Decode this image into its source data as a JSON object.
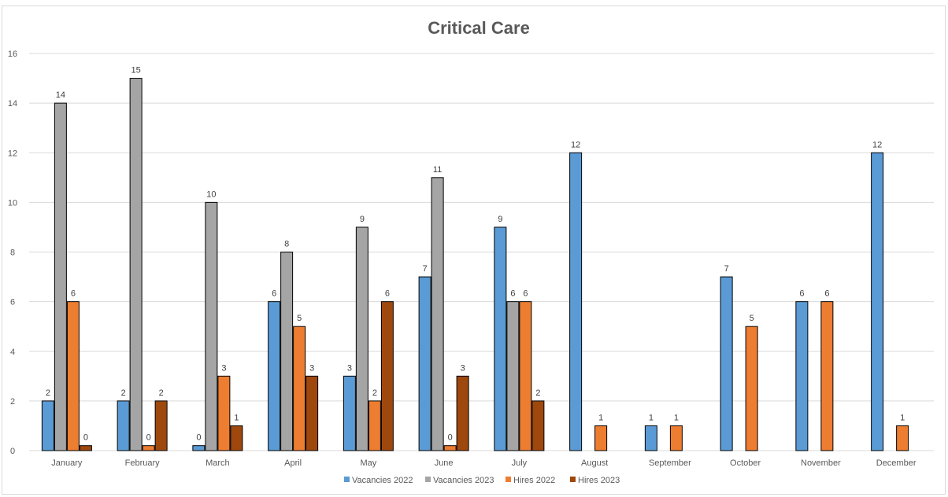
{
  "chart_data": {
    "type": "bar",
    "title": "Critical Care",
    "xlabel": "",
    "ylabel": "",
    "ylim": [
      0,
      16
    ],
    "yticks": [
      0,
      2,
      4,
      6,
      8,
      10,
      12,
      14,
      16
    ],
    "grid": true,
    "legend_position": "bottom",
    "categories": [
      "January",
      "February",
      "March",
      "April",
      "May",
      "June",
      "July",
      "August",
      "September",
      "October",
      "November",
      "December"
    ],
    "series": [
      {
        "name": "Vacancies 2022",
        "color": "#5b9bd5",
        "values": [
          2,
          2,
          0,
          6,
          3,
          7,
          9,
          12,
          1,
          7,
          6,
          12
        ]
      },
      {
        "name": "Vacancies 2023",
        "color": "#a5a5a5",
        "values": [
          14,
          15,
          10,
          8,
          9,
          11,
          6,
          null,
          null,
          null,
          null,
          null
        ]
      },
      {
        "name": "Hires 2022",
        "color": "#ed7d31",
        "values": [
          6,
          0,
          3,
          5,
          2,
          0,
          6,
          1,
          1,
          5,
          6,
          1
        ]
      },
      {
        "name": "Hires 2023",
        "color": "#9e480e",
        "values": [
          0,
          2,
          1,
          3,
          6,
          3,
          2,
          null,
          null,
          null,
          null,
          null
        ]
      }
    ]
  }
}
